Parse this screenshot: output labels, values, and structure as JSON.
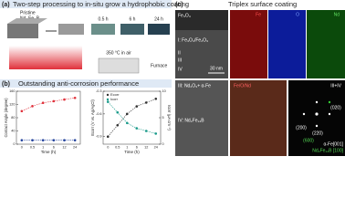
{
  "panel_a": {
    "label": "(a)",
    "title": "Two-step processing to in-situ grow a hydrophobic coating",
    "pristine": "Pristine",
    "material": "Nd–Fe–B",
    "times": [
      "0.5 h",
      "6 h",
      "24 h"
    ],
    "temperature": "350 °C in air",
    "furnace": "Furnace"
  },
  "panel_b": {
    "label": "(b)",
    "title": "Outstanding anti-corrosion performance",
    "contact_angle_chart": {
      "type": "line",
      "y_label": "Contact Angle (degree)",
      "x_label": "Time (h)",
      "categories": [
        "0",
        "0.5",
        "1",
        "6",
        "12",
        "24"
      ],
      "series": [
        {
          "color": "#e0303a",
          "values": [
            100,
            115,
            125,
            130,
            135,
            140
          ]
        },
        {
          "color": "#1f3f9a",
          "values": [
            12,
            12,
            12,
            12,
            12,
            12
          ]
        }
      ],
      "ylim": [
        0,
        160
      ],
      "yticks": [
        0,
        40,
        80,
        120,
        160
      ]
    },
    "corrosion_chart": {
      "type": "line",
      "x_label": "Time (h)",
      "y_label": "Ecorr (V vs. Ag/AgCl)",
      "y2_label": "Icorr (μA cm⁻²)",
      "categories": [
        "0",
        "0.5",
        "1",
        "6",
        "12",
        "24"
      ],
      "series": [
        {
          "name": "Ecorr",
          "color": "#333333",
          "values": [
            -0.9,
            -0.75,
            -0.6,
            -0.5,
            -0.45,
            -0.4
          ]
        },
        {
          "name": "Icorr",
          "color": "#1a9a8a",
          "values": [
            8,
            6,
            4,
            3,
            2.5,
            2
          ],
          "axis": "y2"
        }
      ],
      "ylim": [
        -1,
        -0.3
      ],
      "yticks": [
        -0.9,
        -0.6,
        -0.3
      ],
      "y2lim": [
        0,
        10
      ],
      "y2ticks": [
        0,
        5,
        10
      ]
    }
  },
  "panel_c": {
    "label": "(c)",
    "title": "Triplex surface coating",
    "tem_labels": [
      "Fe₃O₄",
      "I: Fe₃O₄/Fe₂O₃",
      "II",
      "III",
      "IV"
    ],
    "scale_bar": "30 nm",
    "maps": [
      "Fe",
      "O",
      "Nd"
    ],
    "hrtem_labels": [
      "III: Nd₂O₃+ α-Fe",
      "IV: Nd₂Fe₁₄B"
    ],
    "composite": "Fe/O/Nd",
    "saed": {
      "title": "III+IV",
      "spots": [
        "(200)",
        "(220)",
        "(020)",
        "(600)"
      ],
      "zones": [
        "α-Fe[001]",
        "Nd₂Fe₁₄B [100]"
      ]
    }
  }
}
